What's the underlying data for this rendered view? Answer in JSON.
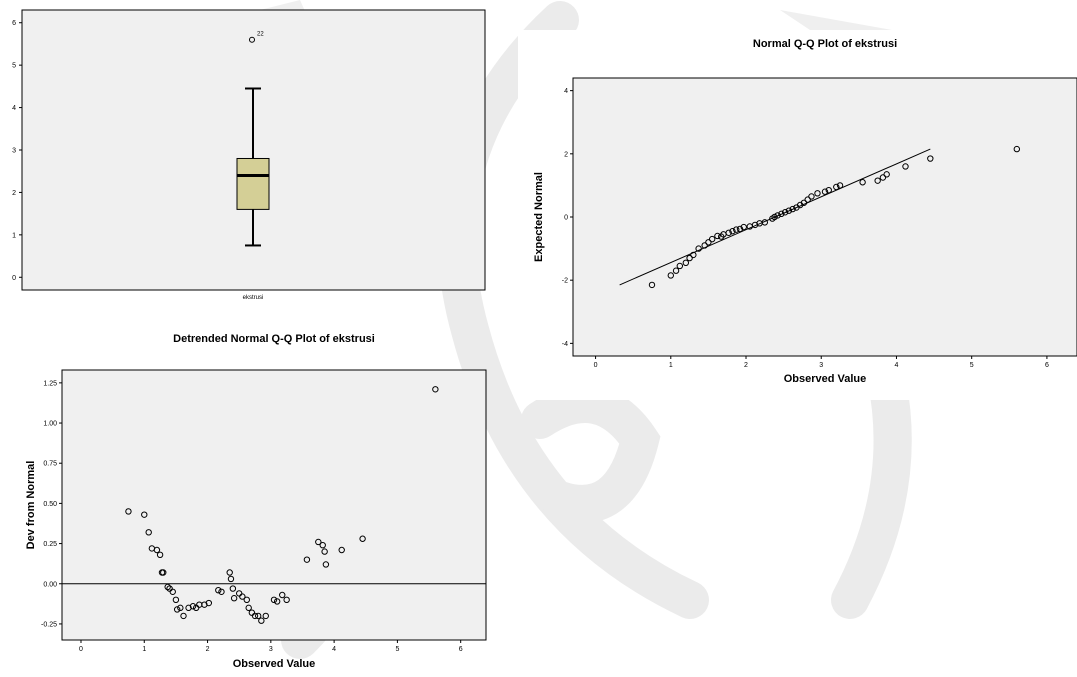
{
  "chart_data": [
    {
      "type": "boxplot",
      "title": "",
      "category_label": "ekstrusi",
      "ylim": [
        -0.3,
        6.3
      ],
      "yticks": [
        0,
        1,
        2,
        3,
        4,
        5,
        6
      ],
      "whisker_low": 0.75,
      "q1": 1.6,
      "median": 2.4,
      "q3": 2.8,
      "whisker_high": 4.45,
      "outliers": [
        {
          "label": "22",
          "value": 5.6
        }
      ],
      "colors": {
        "box_fill": "#d4cf96",
        "background": "#f0f0f0"
      }
    },
    {
      "type": "scatter",
      "title": "Normal Q-Q Plot of ekstrusi",
      "xlabel": "Observed Value",
      "ylabel": "Expected Normal",
      "xlim": [
        -0.3,
        6.4
      ],
      "ylim": [
        -4.4,
        4.4
      ],
      "xticks": [
        0,
        1,
        2,
        3,
        4,
        5,
        6
      ],
      "yticks": [
        -4,
        -2,
        0,
        2,
        4
      ],
      "reference_line": [
        [
          0.32,
          -2.15
        ],
        [
          4.45,
          2.15
        ]
      ],
      "points": [
        [
          0.75,
          -2.15
        ],
        [
          1.0,
          -1.85
        ],
        [
          1.07,
          -1.7
        ],
        [
          1.12,
          -1.55
        ],
        [
          1.2,
          -1.45
        ],
        [
          1.25,
          -1.3
        ],
        [
          1.3,
          -1.2
        ],
        [
          1.37,
          -1.0
        ],
        [
          1.45,
          -0.9
        ],
        [
          1.5,
          -0.8
        ],
        [
          1.55,
          -0.7
        ],
        [
          1.62,
          -0.6
        ],
        [
          1.67,
          -0.62
        ],
        [
          1.7,
          -0.55
        ],
        [
          1.77,
          -0.5
        ],
        [
          1.82,
          -0.45
        ],
        [
          1.87,
          -0.4
        ],
        [
          1.92,
          -0.38
        ],
        [
          1.97,
          -0.32
        ],
        [
          2.05,
          -0.3
        ],
        [
          2.12,
          -0.25
        ],
        [
          2.18,
          -0.2
        ],
        [
          2.25,
          -0.17
        ],
        [
          2.35,
          -0.05
        ],
        [
          2.38,
          0.0
        ],
        [
          2.42,
          0.05
        ],
        [
          2.47,
          0.1
        ],
        [
          2.52,
          0.15
        ],
        [
          2.57,
          0.2
        ],
        [
          2.62,
          0.25
        ],
        [
          2.67,
          0.3
        ],
        [
          2.72,
          0.38
        ],
        [
          2.77,
          0.45
        ],
        [
          2.82,
          0.55
        ],
        [
          2.87,
          0.65
        ],
        [
          2.95,
          0.75
        ],
        [
          3.05,
          0.8
        ],
        [
          3.1,
          0.85
        ],
        [
          3.2,
          0.95
        ],
        [
          3.25,
          1.0
        ],
        [
          3.55,
          1.1
        ],
        [
          3.75,
          1.15
        ],
        [
          3.82,
          1.25
        ],
        [
          3.87,
          1.35
        ],
        [
          4.12,
          1.6
        ],
        [
          4.45,
          1.85
        ],
        [
          5.6,
          2.15
        ]
      ],
      "colors": {
        "background": "#f0f0f0"
      }
    },
    {
      "type": "scatter",
      "title": "Detrended Normal Q-Q Plot of ekstrusi",
      "xlabel": "Observed Value",
      "ylabel": "Dev from Normal",
      "xlim": [
        -0.3,
        6.4
      ],
      "ylim": [
        -0.35,
        1.33
      ],
      "xticks": [
        0,
        1,
        2,
        3,
        4,
        5,
        6
      ],
      "yticks": [
        -0.25,
        0.0,
        0.25,
        0.5,
        0.75,
        1.0,
        1.25
      ],
      "ytick_labels": [
        "-0.25",
        "0.00",
        "0.25",
        "0.50",
        "0.75",
        "1.00",
        "1.25"
      ],
      "reference_y": 0,
      "points": [
        [
          0.75,
          0.45
        ],
        [
          1.0,
          0.43
        ],
        [
          1.07,
          0.32
        ],
        [
          1.12,
          0.22
        ],
        [
          1.2,
          0.21
        ],
        [
          1.25,
          0.18
        ],
        [
          1.28,
          0.07
        ],
        [
          1.3,
          0.07
        ],
        [
          1.37,
          -0.02
        ],
        [
          1.4,
          -0.03
        ],
        [
          1.45,
          -0.05
        ],
        [
          1.5,
          -0.1
        ],
        [
          1.52,
          -0.16
        ],
        [
          1.57,
          -0.15
        ],
        [
          1.62,
          -0.2
        ],
        [
          1.7,
          -0.15
        ],
        [
          1.77,
          -0.14
        ],
        [
          1.82,
          -0.15
        ],
        [
          1.87,
          -0.13
        ],
        [
          1.95,
          -0.13
        ],
        [
          2.02,
          -0.12
        ],
        [
          2.17,
          -0.04
        ],
        [
          2.22,
          -0.05
        ],
        [
          2.35,
          0.07
        ],
        [
          2.37,
          0.03
        ],
        [
          2.4,
          -0.03
        ],
        [
          2.42,
          -0.09
        ],
        [
          2.5,
          -0.06
        ],
        [
          2.55,
          -0.08
        ],
        [
          2.62,
          -0.1
        ],
        [
          2.65,
          -0.15
        ],
        [
          2.7,
          -0.18
        ],
        [
          2.75,
          -0.2
        ],
        [
          2.8,
          -0.2
        ],
        [
          2.85,
          -0.23
        ],
        [
          2.92,
          -0.2
        ],
        [
          3.05,
          -0.1
        ],
        [
          3.1,
          -0.11
        ],
        [
          3.18,
          -0.07
        ],
        [
          3.25,
          -0.1
        ],
        [
          3.57,
          0.15
        ],
        [
          3.75,
          0.26
        ],
        [
          3.82,
          0.24
        ],
        [
          3.85,
          0.2
        ],
        [
          3.87,
          0.12
        ],
        [
          4.12,
          0.21
        ],
        [
          4.45,
          0.28
        ],
        [
          5.6,
          1.21
        ]
      ],
      "colors": {
        "background": "#f0f0f0"
      }
    }
  ]
}
